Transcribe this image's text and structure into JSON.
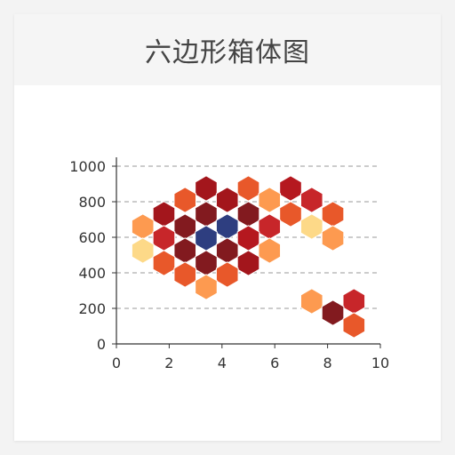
{
  "card": {
    "title": "六边形箱体图"
  },
  "chart_data": {
    "type": "hexbin",
    "title": "六边形箱体图",
    "xlabel": "",
    "ylabel": "",
    "xlim": [
      0,
      10
    ],
    "ylim": [
      0,
      1000
    ],
    "x_ticks": [
      "0",
      "2",
      "4",
      "6",
      "8",
      "10"
    ],
    "y_ticks": [
      "0",
      "200",
      "400",
      "600",
      "800",
      "1000"
    ],
    "grid": "horizontal-dashed",
    "cells": [
      {
        "x": 3.4,
        "y": 875,
        "color": "#a3161c"
      },
      {
        "x": 5.0,
        "y": 875,
        "color": "#e8582a"
      },
      {
        "x": 6.6,
        "y": 875,
        "color": "#b5181f"
      },
      {
        "x": 2.6,
        "y": 810,
        "color": "#e8582a"
      },
      {
        "x": 4.2,
        "y": 810,
        "color": "#a3161c"
      },
      {
        "x": 5.8,
        "y": 810,
        "color": "#fd9a50"
      },
      {
        "x": 7.4,
        "y": 810,
        "color": "#c7262a"
      },
      {
        "x": 1.8,
        "y": 730,
        "color": "#a3161c"
      },
      {
        "x": 3.4,
        "y": 730,
        "color": "#821a1f"
      },
      {
        "x": 5.0,
        "y": 730,
        "color": "#821a1f"
      },
      {
        "x": 6.6,
        "y": 730,
        "color": "#e8582a"
      },
      {
        "x": 8.2,
        "y": 730,
        "color": "#e8582a"
      },
      {
        "x": 1.0,
        "y": 660,
        "color": "#fd9a50"
      },
      {
        "x": 2.6,
        "y": 660,
        "color": "#821a1f"
      },
      {
        "x": 4.2,
        "y": 660,
        "color": "#2e3e80"
      },
      {
        "x": 5.8,
        "y": 660,
        "color": "#c7262a"
      },
      {
        "x": 7.4,
        "y": 660,
        "color": "#fdd988"
      },
      {
        "x": 1.8,
        "y": 595,
        "color": "#c7262a"
      },
      {
        "x": 3.4,
        "y": 595,
        "color": "#2e3e80"
      },
      {
        "x": 5.0,
        "y": 595,
        "color": "#b5181f"
      },
      {
        "x": 8.2,
        "y": 595,
        "color": "#fd9a50"
      },
      {
        "x": 1.0,
        "y": 525,
        "color": "#fdd988"
      },
      {
        "x": 2.6,
        "y": 525,
        "color": "#821a1f"
      },
      {
        "x": 4.2,
        "y": 525,
        "color": "#821a1f"
      },
      {
        "x": 5.8,
        "y": 525,
        "color": "#fd9a50"
      },
      {
        "x": 1.8,
        "y": 455,
        "color": "#e8582a"
      },
      {
        "x": 3.4,
        "y": 455,
        "color": "#821a1f"
      },
      {
        "x": 5.0,
        "y": 455,
        "color": "#a3161c"
      },
      {
        "x": 2.6,
        "y": 390,
        "color": "#e8582a"
      },
      {
        "x": 4.2,
        "y": 390,
        "color": "#e8582a"
      },
      {
        "x": 3.4,
        "y": 320,
        "color": "#fd9a50"
      },
      {
        "x": 7.4,
        "y": 240,
        "color": "#fd9a50"
      },
      {
        "x": 9.0,
        "y": 240,
        "color": "#c7262a"
      },
      {
        "x": 8.2,
        "y": 175,
        "color": "#821a1f"
      },
      {
        "x": 9.0,
        "y": 105,
        "color": "#e8582a"
      }
    ]
  }
}
